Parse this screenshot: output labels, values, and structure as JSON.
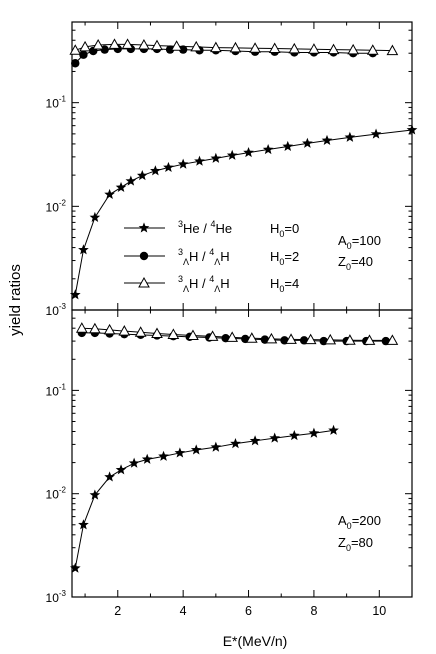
{
  "figure": {
    "ylabel": "yield ratios",
    "xlabel": "E*(MeV/n)"
  },
  "chart_data": [
    {
      "type": "line",
      "panel": "top",
      "y_scale": "log",
      "xlim": [
        0.6,
        11
      ],
      "ylim": [
        0.001,
        0.6
      ],
      "x_ticks": [
        2,
        4,
        6,
        8,
        10
      ],
      "y_ticks": [
        {
          "value": 0.001,
          "base": "10",
          "exp": "-3"
        },
        {
          "value": 0.01,
          "base": "10",
          "exp": "-2"
        },
        {
          "value": 0.1,
          "base": "10",
          "exp": "-1"
        }
      ],
      "annotation": [
        {
          "base": "A",
          "sub": "0",
          "rest": "=100"
        },
        {
          "base": "Z",
          "sub": "0",
          "rest": "=40"
        }
      ],
      "series": [
        {
          "name": "3He / 4He",
          "label_parts": {
            "m1": "3",
            "n1": "He",
            "m2": "4",
            "n2": "He",
            "cond": "H",
            "csub": "0",
            "cval": "=0"
          },
          "marker": "star",
          "x": [
            0.7,
            0.95,
            1.3,
            1.75,
            2.1,
            2.4,
            2.75,
            3.15,
            3.55,
            4.0,
            4.5,
            5.0,
            5.5,
            6.0,
            6.6,
            7.2,
            7.8,
            8.4,
            9.1,
            9.9,
            11.0
          ],
          "y": [
            0.0014,
            0.0038,
            0.0078,
            0.013,
            0.0152,
            0.0175,
            0.0198,
            0.022,
            0.0237,
            0.0255,
            0.0272,
            0.029,
            0.031,
            0.033,
            0.0353,
            0.0378,
            0.0405,
            0.0432,
            0.0463,
            0.0497,
            0.0545
          ]
        },
        {
          "name": "3ΛH / 4ΛH",
          "label_parts": {
            "m1": "3",
            "s1": "Λ",
            "n1": "H",
            "m2": "4",
            "s2": "Λ",
            "n2": "H",
            "cond": "H",
            "csub": "0",
            "cval": "=2"
          },
          "marker": "circle",
          "x": [
            0.7,
            0.95,
            1.25,
            1.6,
            2.0,
            2.4,
            2.8,
            3.2,
            3.6,
            4.0,
            4.5,
            5.0,
            5.6,
            6.2,
            6.8,
            7.4,
            8.0,
            8.6,
            9.2,
            9.8
          ],
          "y": [
            0.24,
            0.29,
            0.315,
            0.325,
            0.33,
            0.33,
            0.33,
            0.33,
            0.325,
            0.325,
            0.32,
            0.32,
            0.315,
            0.31,
            0.31,
            0.305,
            0.305,
            0.305,
            0.3,
            0.3
          ]
        },
        {
          "name": "3ΛH / 4ΛH",
          "label_parts": {
            "m1": "3",
            "s1": "Λ",
            "n1": "H",
            "m2": "4",
            "s2": "Λ",
            "n2": "H",
            "cond": "H",
            "csub": "0",
            "cval": "=4"
          },
          "marker": "triangle",
          "x": [
            0.7,
            1.0,
            1.4,
            1.9,
            2.3,
            2.8,
            3.2,
            3.8,
            4.4,
            5.0,
            5.6,
            6.2,
            6.8,
            7.4,
            8.0,
            8.6,
            9.2,
            9.8,
            10.4
          ],
          "y": [
            0.32,
            0.345,
            0.36,
            0.365,
            0.365,
            0.36,
            0.355,
            0.35,
            0.345,
            0.34,
            0.338,
            0.335,
            0.333,
            0.33,
            0.328,
            0.325,
            0.323,
            0.32,
            0.318
          ]
        }
      ]
    },
    {
      "type": "line",
      "panel": "bottom",
      "y_scale": "log",
      "xlim": [
        0.6,
        11
      ],
      "ylim": [
        0.001,
        0.6
      ],
      "x_ticks": [
        2,
        4,
        6,
        8,
        10
      ],
      "y_ticks": [
        {
          "value": 0.001,
          "base": "10",
          "exp": "-3"
        },
        {
          "value": 0.01,
          "base": "10",
          "exp": "-2"
        },
        {
          "value": 0.1,
          "base": "10",
          "exp": "-1"
        }
      ],
      "annotation": [
        {
          "base": "A",
          "sub": "0",
          "rest": "=200"
        },
        {
          "base": "Z",
          "sub": "0",
          "rest": "=80"
        }
      ],
      "series": [
        {
          "marker": "star",
          "x": [
            0.7,
            0.95,
            1.3,
            1.75,
            2.1,
            2.5,
            2.9,
            3.4,
            3.9,
            4.4,
            5.0,
            5.6,
            6.2,
            6.8,
            7.4,
            8.0,
            8.6
          ],
          "y": [
            0.0019,
            0.005,
            0.0097,
            0.0145,
            0.017,
            0.0197,
            0.0215,
            0.023,
            0.0248,
            0.0265,
            0.0282,
            0.0305,
            0.0325,
            0.0345,
            0.0365,
            0.0385,
            0.041
          ]
        },
        {
          "marker": "circle",
          "x": [
            0.9,
            1.3,
            1.75,
            2.2,
            2.7,
            3.2,
            3.7,
            4.2,
            4.8,
            5.3,
            5.9,
            6.5,
            7.1,
            7.7,
            8.3,
            9.0,
            9.6,
            10.2
          ],
          "y": [
            0.36,
            0.36,
            0.355,
            0.35,
            0.345,
            0.34,
            0.335,
            0.33,
            0.325,
            0.32,
            0.315,
            0.31,
            0.305,
            0.305,
            0.3,
            0.3,
            0.3,
            0.3
          ]
        },
        {
          "marker": "triangle",
          "x": [
            0.9,
            1.3,
            1.75,
            2.2,
            2.7,
            3.2,
            3.7,
            4.3,
            4.9,
            5.5,
            6.1,
            6.7,
            7.3,
            7.9,
            8.5,
            9.1,
            9.7,
            10.4
          ],
          "y": [
            0.4,
            0.395,
            0.385,
            0.375,
            0.365,
            0.355,
            0.348,
            0.34,
            0.333,
            0.326,
            0.32,
            0.315,
            0.312,
            0.31,
            0.308,
            0.306,
            0.305,
            0.305
          ]
        }
      ]
    }
  ]
}
